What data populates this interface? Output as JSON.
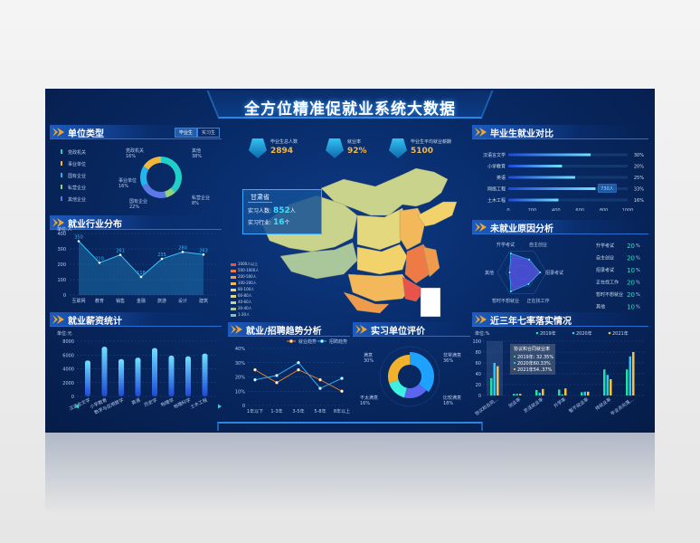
{
  "title": "全方位精准促就业系统大数据",
  "unit_type": {
    "title": "单位类型",
    "tabs": [
      "毕业生",
      "实习生"
    ],
    "active_tab": 0,
    "legend": [
      "党政机关",
      "事业单位",
      "国有企业",
      "私营企业",
      "其他企业"
    ],
    "slices": [
      {
        "name": "其他",
        "pct": "38%",
        "value": 38,
        "color": "#1fd0c8"
      },
      {
        "name": "私营企业",
        "pct": "8%",
        "value": 8,
        "color": "#93d27a"
      },
      {
        "name": "国有企业",
        "pct": "22%",
        "value": 22,
        "color": "#5a78e6"
      },
      {
        "name": "事业单位",
        "pct": "16%",
        "value": 16,
        "color": "#21b6f0"
      },
      {
        "name": "党政机关",
        "pct": "16%",
        "value": 16,
        "color": "#f2b63a"
      }
    ]
  },
  "industry": {
    "title": "就业行业分布",
    "unit": "单位:人",
    "chart_data": {
      "type": "area",
      "categories": [
        "互联网",
        "教育",
        "销售",
        "金融",
        "旅游",
        "设计",
        "建筑"
      ],
      "values": [
        350,
        210,
        261,
        118,
        235,
        280,
        263
      ],
      "ylim": [
        0,
        400
      ],
      "yticks": [
        "0",
        "100",
        "200",
        "300",
        "400"
      ]
    }
  },
  "salary": {
    "title": "就业薪资统计",
    "unit": "单位:元",
    "chart_data": {
      "type": "bar",
      "categories": [
        "汉语言文学",
        "小学教育",
        "数学与应用数学",
        "英语",
        "历史学",
        "物理学",
        "地理科学",
        "土木工程"
      ],
      "values": [
        5200,
        7200,
        5400,
        5600,
        7000,
        5900,
        5800,
        6200
      ],
      "ylim": [
        0,
        8000
      ],
      "yticks": [
        "0",
        "2000",
        "4000",
        "6000",
        "8000"
      ]
    }
  },
  "stats": [
    {
      "label": "毕业生总人数",
      "value": "2894"
    },
    {
      "label": "就业率",
      "value": "92%"
    },
    {
      "label": "毕业生平均就业薪酬",
      "value": "5100"
    }
  ],
  "map": {
    "tooltip": {
      "province": "甘肃省",
      "count_label": "实习人数:",
      "count": "852",
      "count_unit": "人",
      "industry_label": "实习行业:",
      "industry": "16",
      "industry_unit": "个"
    },
    "legend": [
      {
        "label": "1000人以上",
        "color": "#e8534a"
      },
      {
        "label": "500-1000人",
        "color": "#ee7b45"
      },
      {
        "label": "200-500人",
        "color": "#f09a4c"
      },
      {
        "label": "100-200人",
        "color": "#f3b85a"
      },
      {
        "label": "80-100人",
        "color": "#f2d36b"
      },
      {
        "label": "60-80人",
        "color": "#e3d87d"
      },
      {
        "label": "40-60人",
        "color": "#c9d38c"
      },
      {
        "label": "20-40人",
        "color": "#a9c79a"
      },
      {
        "label": "1-20人",
        "color": "#8ebfa8"
      }
    ]
  },
  "trend": {
    "title": "就业/招聘趋势分析",
    "chart_data": {
      "type": "line",
      "categories": [
        "1年以下",
        "1-3年",
        "3-5年",
        "5-8年",
        "8年以上"
      ],
      "series": [
        {
          "name": "就业趋势",
          "values": [
            25,
            16,
            25,
            18,
            10
          ],
          "color": "#f08a2a"
        },
        {
          "name": "招聘趋势",
          "values": [
            18,
            21,
            30,
            12,
            19
          ],
          "color": "#38b6f2"
        }
      ],
      "ylim": [
        0,
        40
      ],
      "yticks": [
        "0",
        "10%",
        "20%",
        "30%",
        "40%"
      ]
    }
  },
  "evaluation": {
    "title": "实习单位评价",
    "slices": [
      {
        "name": "非常满意",
        "pct": "36%",
        "value": 36,
        "color": "#1fa2ff"
      },
      {
        "name": "比较满意",
        "pct": "18%",
        "value": 18,
        "color": "#5a66f0"
      },
      {
        "name": "不太满意",
        "pct": "16%",
        "value": 16,
        "color": "#3ff0e0"
      },
      {
        "name": "满意",
        "pct": "30%",
        "value": 30,
        "color": "#f2b22c"
      }
    ]
  },
  "comparison": {
    "title": "毕业生就业对比",
    "chart_data": {
      "type": "bar",
      "orientation": "horizontal",
      "categories": [
        "汉语言文学",
        "小学教育",
        "英语",
        "网络工程",
        "土木工程"
      ],
      "values": [
        690,
        450,
        560,
        730,
        420
      ],
      "percents": [
        "30%",
        "20%",
        "25%",
        "33%",
        "16%"
      ],
      "xlim": [
        0,
        1000
      ],
      "xticks": [
        "0",
        "200",
        "400",
        "600",
        "800",
        "1000"
      ],
      "tooltip": "730人"
    }
  },
  "reasons": {
    "title": "未就业原因分析",
    "axes": [
      "升学考试",
      "自主创业",
      "招录考试",
      "正在找工作",
      "暂时不想就业",
      "其他"
    ],
    "values": [
      20,
      20,
      10,
      20,
      20,
      10
    ],
    "list": [
      {
        "label": "升学考试",
        "value": "20"
      },
      {
        "label": "自主创业",
        "value": "20"
      },
      {
        "label": "招录考试",
        "value": "10"
      },
      {
        "label": "正在找工作",
        "value": "20"
      },
      {
        "label": "暂时不想就业",
        "value": "20"
      },
      {
        "label": "其他",
        "value": "10"
      }
    ],
    "unit": "%"
  },
  "seven_rates": {
    "title": "近三年七率落实情况",
    "unit": "单位:%",
    "tooltip": {
      "title": "协议和合同就业率",
      "rows": [
        "2019年: 32.35%",
        "2020年60.33%",
        "2021年54..37%"
      ]
    },
    "chart_data": {
      "type": "bar",
      "categories": [
        "协议和合同...",
        "创业率",
        "灵活就业率",
        "升学率",
        "暂不就业率",
        "待就业率",
        "毕业去向落..."
      ],
      "series": [
        {
          "name": "2019年",
          "values": [
            32,
            3,
            10,
            11,
            6,
            48,
            48
          ],
          "color": "#23e0a0"
        },
        {
          "name": "2020年",
          "values": [
            60,
            3,
            5,
            2,
            7,
            38,
            72
          ],
          "color": "#27c9f5"
        },
        {
          "name": "2021年",
          "values": [
            54,
            3,
            12,
            13,
            7,
            30,
            80
          ],
          "color": "#f5c23a"
        }
      ],
      "ylim": [
        0,
        100
      ],
      "yticks": [
        "0",
        "20",
        "40",
        "60",
        "80",
        "100"
      ]
    }
  }
}
